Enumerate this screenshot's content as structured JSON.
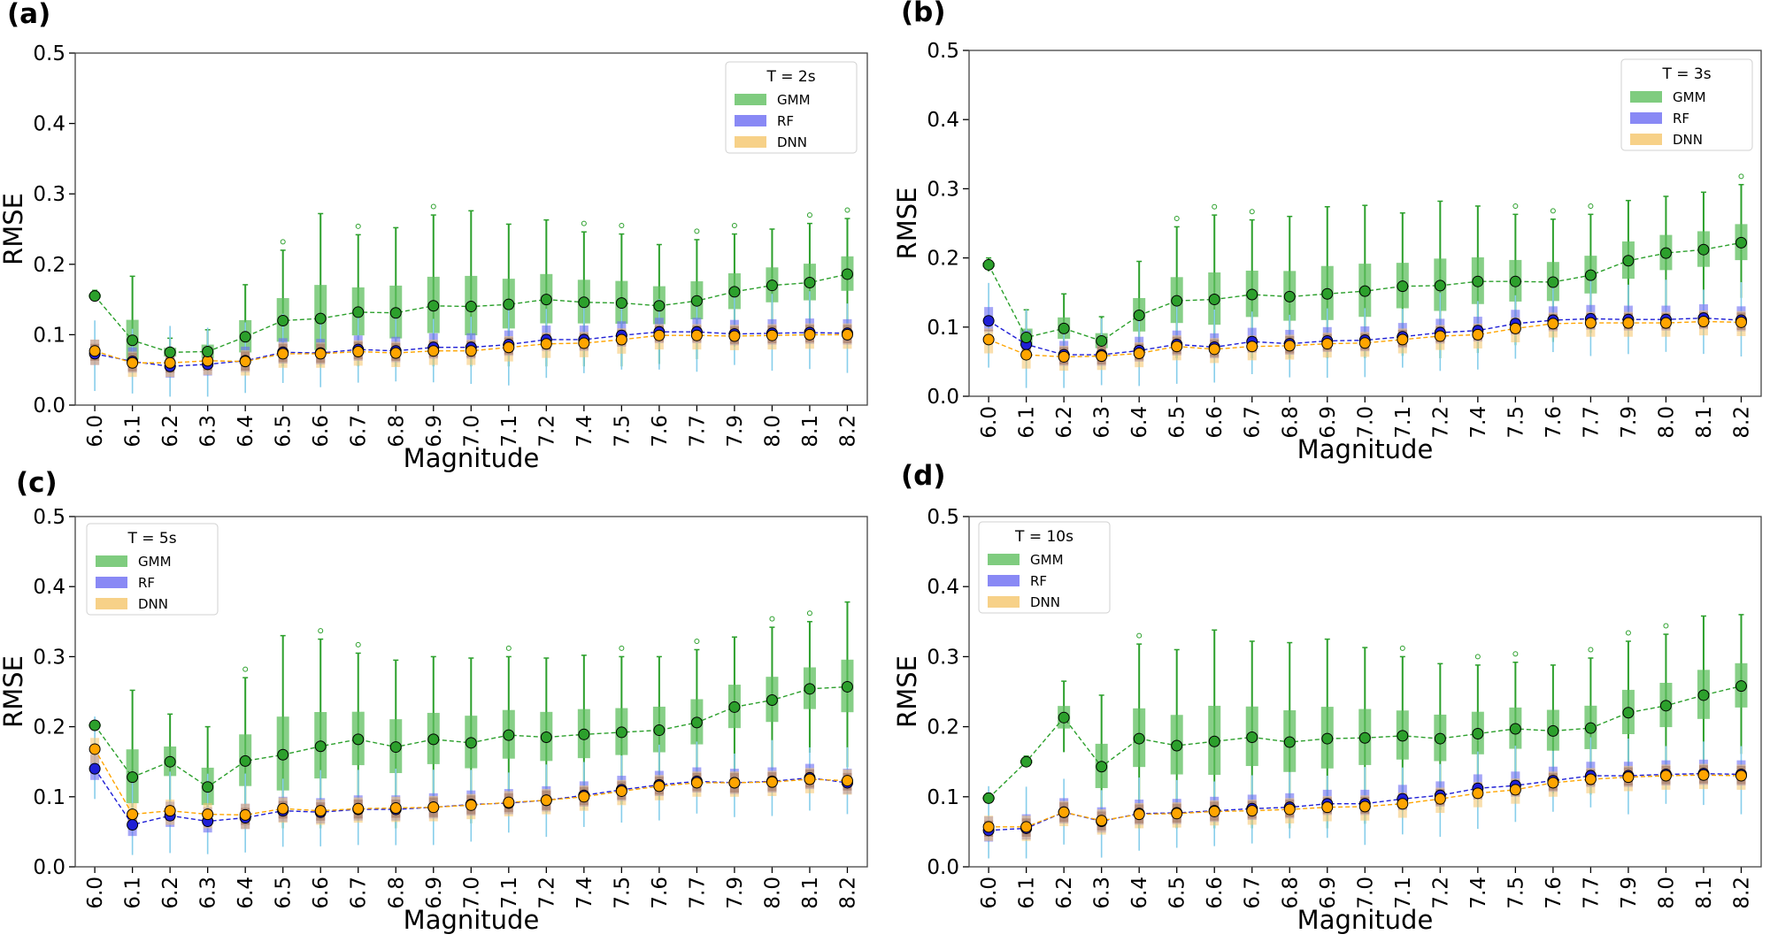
{
  "colors": {
    "GMM": "#2ca02c",
    "RF": "#1f1fd6",
    "DNN": "#ffa500",
    "GMM_box": "#5fbf5f",
    "RF_box": "#6b6bf2",
    "DNN_box": "#f5c56a",
    "overlap_box": "#9c6d57",
    "whisker_light": "#87ceeb"
  },
  "chart_data": [
    {
      "type": "box",
      "panel": "(a)",
      "legend_title": "T = 2s",
      "legend_position": "top-right",
      "xlabel": "Magnitude",
      "ylabel": "RMSE",
      "ylim": [
        0.0,
        0.5
      ],
      "yticks": [
        "0.0",
        "0.1",
        "0.2",
        "0.3",
        "0.4",
        "0.5"
      ],
      "categories": [
        "6.0",
        "6.1",
        "6.2",
        "6.3",
        "6.4",
        "6.5",
        "6.6",
        "6.7",
        "6.8",
        "6.9",
        "7.0",
        "7.1",
        "7.2",
        "7.4",
        "7.5",
        "7.6",
        "7.7",
        "7.9",
        "8.0",
        "8.1",
        "8.2"
      ],
      "series": [
        {
          "name": "GMM",
          "values": [
            0.155,
            0.092,
            0.075,
            0.076,
            0.097,
            0.12,
            0.123,
            0.132,
            0.131,
            0.141,
            0.14,
            0.143,
            0.15,
            0.146,
            0.145,
            0.141,
            0.148,
            0.161,
            0.17,
            0.174,
            0.186
          ],
          "whisker_max": [
            0.163,
            0.183,
            0.095,
            0.107,
            0.171,
            0.22,
            0.272,
            0.242,
            0.252,
            0.27,
            0.276,
            0.257,
            0.263,
            0.246,
            0.243,
            0.228,
            0.235,
            0.243,
            0.25,
            0.258,
            0.265
          ]
        },
        {
          "name": "RF",
          "values": [
            0.073,
            0.062,
            0.055,
            0.058,
            0.063,
            0.075,
            0.074,
            0.079,
            0.077,
            0.082,
            0.082,
            0.086,
            0.093,
            0.093,
            0.099,
            0.104,
            0.104,
            0.101,
            0.102,
            0.103,
            0.102
          ]
        },
        {
          "name": "DNN",
          "values": [
            0.077,
            0.06,
            0.06,
            0.063,
            0.062,
            0.073,
            0.073,
            0.076,
            0.074,
            0.077,
            0.077,
            0.082,
            0.087,
            0.088,
            0.093,
            0.099,
            0.099,
            0.098,
            0.099,
            0.1,
            0.1
          ]
        }
      ]
    },
    {
      "type": "box",
      "panel": "(b)",
      "legend_title": "T = 3s",
      "legend_position": "top-right",
      "xlabel": "Magnitude",
      "ylabel": "RMSE",
      "ylim": [
        0.0,
        0.5
      ],
      "yticks": [
        "0.0",
        "0.1",
        "0.2",
        "0.3",
        "0.4",
        "0.5"
      ],
      "categories": [
        "6.0",
        "6.1",
        "6.2",
        "6.3",
        "6.4",
        "6.5",
        "6.6",
        "6.7",
        "6.8",
        "6.9",
        "7.0",
        "7.1",
        "7.2",
        "7.4",
        "7.5",
        "7.6",
        "7.7",
        "7.9",
        "8.0",
        "8.1",
        "8.2"
      ],
      "series": [
        {
          "name": "GMM",
          "values": [
            0.19,
            0.085,
            0.098,
            0.08,
            0.117,
            0.138,
            0.14,
            0.147,
            0.144,
            0.148,
            0.152,
            0.159,
            0.16,
            0.166,
            0.166,
            0.165,
            0.175,
            0.196,
            0.207,
            0.212,
            0.222
          ],
          "whisker_max": [
            0.2,
            0.125,
            0.148,
            0.115,
            0.195,
            0.245,
            0.262,
            0.255,
            0.26,
            0.274,
            0.276,
            0.265,
            0.282,
            0.275,
            0.263,
            0.256,
            0.263,
            0.283,
            0.289,
            0.295,
            0.306
          ]
        },
        {
          "name": "RF",
          "values": [
            0.109,
            0.075,
            0.06,
            0.06,
            0.066,
            0.075,
            0.071,
            0.079,
            0.076,
            0.08,
            0.081,
            0.086,
            0.092,
            0.095,
            0.105,
            0.11,
            0.112,
            0.111,
            0.111,
            0.113,
            0.11
          ]
        },
        {
          "name": "DNN",
          "values": [
            0.082,
            0.06,
            0.057,
            0.058,
            0.062,
            0.072,
            0.068,
            0.072,
            0.073,
            0.076,
            0.077,
            0.082,
            0.087,
            0.089,
            0.098,
            0.105,
            0.106,
            0.106,
            0.106,
            0.108,
            0.107
          ]
        }
      ]
    },
    {
      "type": "box",
      "panel": "(c)",
      "legend_title": "T = 5s",
      "legend_position": "top-left",
      "xlabel": "Magnitude",
      "ylabel": "RMSE",
      "ylim": [
        0.0,
        0.5
      ],
      "yticks": [
        "0.0",
        "0.1",
        "0.2",
        "0.3",
        "0.4",
        "0.5"
      ],
      "categories": [
        "6.0",
        "6.1",
        "6.2",
        "6.3",
        "6.4",
        "6.5",
        "6.6",
        "6.7",
        "6.8",
        "6.9",
        "7.0",
        "7.1",
        "7.2",
        "7.4",
        "7.5",
        "7.6",
        "7.7",
        "7.9",
        "8.0",
        "8.1",
        "8.2"
      ],
      "series": [
        {
          "name": "GMM",
          "values": [
            0.202,
            0.128,
            0.15,
            0.114,
            0.151,
            0.16,
            0.172,
            0.182,
            0.171,
            0.182,
            0.177,
            0.188,
            0.185,
            0.189,
            0.192,
            0.195,
            0.206,
            0.228,
            0.238,
            0.254,
            0.257
          ],
          "whisker_max": [
            0.208,
            0.252,
            0.218,
            0.2,
            0.27,
            0.33,
            0.325,
            0.305,
            0.295,
            0.3,
            0.298,
            0.3,
            0.298,
            0.302,
            0.3,
            0.3,
            0.31,
            0.328,
            0.342,
            0.35,
            0.378
          ]
        },
        {
          "name": "RF",
          "values": [
            0.14,
            0.06,
            0.073,
            0.065,
            0.07,
            0.08,
            0.078,
            0.082,
            0.082,
            0.085,
            0.089,
            0.091,
            0.095,
            0.102,
            0.11,
            0.117,
            0.122,
            0.12,
            0.122,
            0.127,
            0.12
          ]
        },
        {
          "name": "DNN",
          "values": [
            0.168,
            0.075,
            0.08,
            0.075,
            0.074,
            0.083,
            0.08,
            0.083,
            0.084,
            0.085,
            0.088,
            0.092,
            0.095,
            0.1,
            0.108,
            0.115,
            0.12,
            0.12,
            0.121,
            0.125,
            0.123
          ]
        }
      ]
    },
    {
      "type": "box",
      "panel": "(d)",
      "legend_title": "T = 10s",
      "legend_position": "top-left",
      "xlabel": "Magnitude",
      "ylabel": "RMSE",
      "ylim": [
        0.0,
        0.5
      ],
      "yticks": [
        "0.0",
        "0.1",
        "0.2",
        "0.3",
        "0.4",
        "0.5"
      ],
      "categories": [
        "6.0",
        "6.1",
        "6.2",
        "6.3",
        "6.4",
        "6.5",
        "6.6",
        "6.7",
        "6.8",
        "6.9",
        "7.0",
        "7.1",
        "7.2",
        "7.4",
        "7.5",
        "7.6",
        "7.7",
        "7.9",
        "8.0",
        "8.1",
        "8.2"
      ],
      "series": [
        {
          "name": "GMM",
          "values": [
            0.098,
            0.15,
            0.213,
            0.143,
            0.183,
            0.173,
            0.179,
            0.185,
            0.178,
            0.183,
            0.184,
            0.187,
            0.183,
            0.19,
            0.197,
            0.194,
            0.198,
            0.22,
            0.23,
            0.245,
            0.258
          ],
          "whisker_max": [
            0.105,
            0.158,
            0.265,
            0.245,
            0.318,
            0.31,
            0.338,
            0.322,
            0.32,
            0.325,
            0.313,
            0.3,
            0.29,
            0.288,
            0.292,
            0.288,
            0.298,
            0.322,
            0.332,
            0.358,
            0.36
          ]
        },
        {
          "name": "RF",
          "values": [
            0.052,
            0.055,
            0.078,
            0.065,
            0.076,
            0.077,
            0.08,
            0.083,
            0.085,
            0.09,
            0.09,
            0.097,
            0.102,
            0.112,
            0.116,
            0.123,
            0.13,
            0.13,
            0.132,
            0.133,
            0.132
          ]
        },
        {
          "name": "DNN",
          "values": [
            0.057,
            0.057,
            0.078,
            0.066,
            0.075,
            0.076,
            0.079,
            0.08,
            0.082,
            0.085,
            0.086,
            0.09,
            0.097,
            0.105,
            0.11,
            0.12,
            0.125,
            0.128,
            0.13,
            0.131,
            0.13
          ]
        }
      ]
    }
  ]
}
